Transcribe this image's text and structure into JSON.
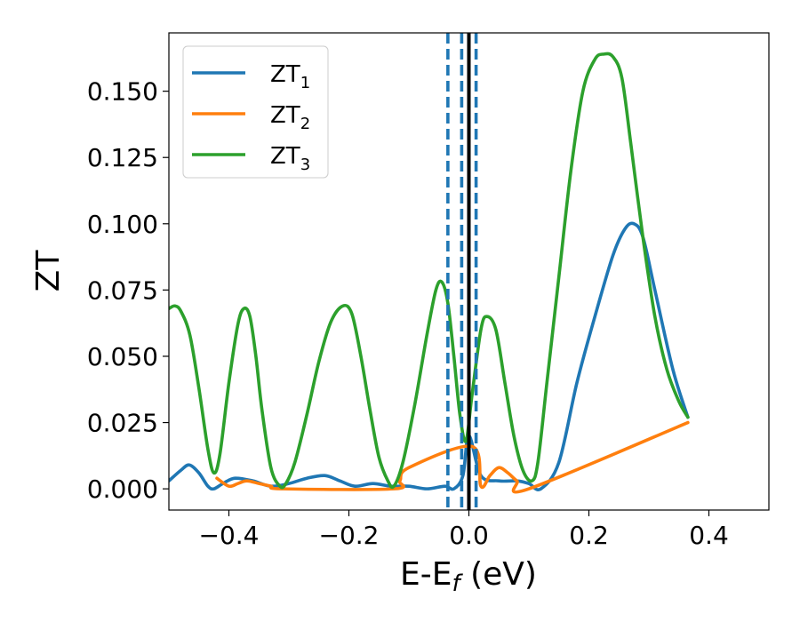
{
  "chart_data": {
    "type": "line",
    "xlabel": "E-E_f (eV)",
    "xlabel_main": "E-E",
    "xlabel_sub": "f",
    "xlabel_unit": "(eV)",
    "ylabel": "ZT",
    "xlim": [
      -0.5,
      0.5
    ],
    "ylim": [
      -0.008,
      0.172
    ],
    "x_ticks": [
      -0.4,
      -0.2,
      0.0,
      0.2,
      0.4
    ],
    "x_tick_labels": [
      "−0.4",
      "−0.2",
      "0.0",
      "0.2",
      "0.4"
    ],
    "y_ticks": [
      0.0,
      0.025,
      0.05,
      0.075,
      0.1,
      0.125,
      0.15
    ],
    "y_tick_labels": [
      "0.000",
      "0.025",
      "0.050",
      "0.075",
      "0.100",
      "0.125",
      "0.150"
    ],
    "grid": false,
    "legend_position": "top-left",
    "vlines": [
      {
        "x": -0.035,
        "style": "dashed",
        "color": "#1f77b4"
      },
      {
        "x": -0.012,
        "style": "dashed",
        "color": "#1f77b4"
      },
      {
        "x": 0.012,
        "style": "dashed",
        "color": "#1f77b4"
      },
      {
        "x": 0.0,
        "style": "solid",
        "color": "#000000"
      }
    ],
    "series": [
      {
        "name": "ZT_1",
        "legend_main": "ZT",
        "legend_sub": "1",
        "color": "#1f77b4",
        "x": [
          -0.5,
          -0.48,
          -0.466,
          -0.45,
          -0.435,
          -0.425,
          -0.41,
          -0.39,
          -0.36,
          -0.33,
          -0.3,
          -0.27,
          -0.24,
          -0.215,
          -0.19,
          -0.16,
          -0.13,
          -0.1,
          -0.07,
          -0.04,
          -0.025,
          -0.01,
          0.0,
          0.02,
          0.05,
          0.08,
          0.1,
          0.12,
          0.15,
          0.18,
          0.21,
          0.24,
          0.26,
          0.275,
          0.29,
          0.31,
          0.34,
          0.365
        ],
        "y": [
          0.003,
          0.007,
          0.009,
          0.006,
          0.001,
          0.0,
          0.002,
          0.004,
          0.003,
          0.001,
          0.002,
          0.004,
          0.005,
          0.003,
          0.001,
          0.002,
          0.001,
          0.001,
          0.0,
          0.001,
          0.0,
          0.005,
          0.02,
          0.005,
          0.003,
          0.003,
          0.002,
          0.0,
          0.01,
          0.04,
          0.065,
          0.088,
          0.098,
          0.1,
          0.095,
          0.075,
          0.045,
          0.027
        ]
      },
      {
        "name": "ZT_2",
        "legend_main": "ZT",
        "legend_sub": "2",
        "color": "#ff7f0e",
        "x": [
          -0.42,
          -0.4,
          -0.385,
          -0.37,
          -0.35,
          -0.33,
          -0.31,
          -0.125,
          -0.115,
          -0.1,
          0.005,
          0.02,
          0.035,
          0.05,
          0.065,
          0.08,
          0.1,
          0.365
        ],
        "y": [
          0.004,
          0.001,
          0.002,
          0.003,
          0.002,
          0.001,
          0.0,
          0.0,
          0.003,
          0.008,
          0.016,
          0.001,
          0.005,
          0.008,
          0.006,
          0.003,
          0.0,
          0.025
        ]
      },
      {
        "name": "ZT_3",
        "legend_main": "ZT",
        "legend_sub": "3",
        "color": "#2ca02c",
        "x": [
          -0.5,
          -0.49,
          -0.48,
          -0.465,
          -0.45,
          -0.435,
          -0.425,
          -0.415,
          -0.4,
          -0.385,
          -0.375,
          -0.365,
          -0.355,
          -0.345,
          -0.33,
          -0.315,
          -0.305,
          -0.29,
          -0.27,
          -0.25,
          -0.23,
          -0.21,
          -0.195,
          -0.18,
          -0.165,
          -0.15,
          -0.135,
          -0.125,
          -0.11,
          -0.09,
          -0.07,
          -0.055,
          -0.045,
          -0.035,
          -0.025,
          -0.015,
          -0.005,
          0.005,
          0.02,
          0.03,
          0.045,
          0.06,
          0.075,
          0.09,
          0.105,
          0.115,
          0.13,
          0.15,
          0.17,
          0.19,
          0.21,
          0.225,
          0.24,
          0.255,
          0.27,
          0.29,
          0.31,
          0.33,
          0.35,
          0.365
        ],
        "y": [
          0.068,
          0.069,
          0.067,
          0.058,
          0.038,
          0.015,
          0.006,
          0.013,
          0.04,
          0.062,
          0.068,
          0.065,
          0.05,
          0.03,
          0.008,
          0.001,
          0.002,
          0.01,
          0.028,
          0.048,
          0.063,
          0.069,
          0.066,
          0.05,
          0.03,
          0.012,
          0.003,
          0.001,
          0.01,
          0.032,
          0.058,
          0.075,
          0.078,
          0.07,
          0.05,
          0.028,
          0.018,
          0.035,
          0.06,
          0.065,
          0.06,
          0.04,
          0.02,
          0.007,
          0.003,
          0.01,
          0.04,
          0.08,
          0.12,
          0.15,
          0.162,
          0.164,
          0.163,
          0.155,
          0.13,
          0.095,
          0.065,
          0.045,
          0.033,
          0.027
        ]
      }
    ]
  }
}
